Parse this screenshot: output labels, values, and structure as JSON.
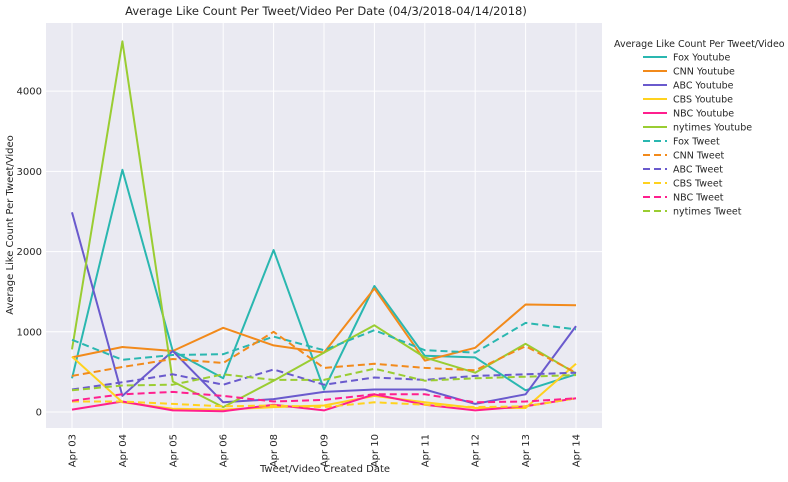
{
  "chart_data": {
    "type": "line",
    "title": "Average Like Count Per Tweet/Video Per Date (04/3/2018-04/14/2018)",
    "xlabel": "Tweet/Video Created Date",
    "ylabel": "Average Like Count Per Tweet/Video",
    "categories": [
      "Apr 03",
      "Apr 04",
      "Apr 05",
      "Apr 06",
      "Apr 08",
      "Apr 09",
      "Apr 10",
      "Apr 11",
      "Apr 12",
      "Apr 13",
      "Apr 14"
    ],
    "y_ticks": [
      0,
      1000,
      2000,
      3000,
      4000
    ],
    "ylim": [
      -200,
      4850
    ],
    "grid": true,
    "legend_title": "Average Like Count Per Tweet/Video",
    "legend_placement": "outside-right",
    "series": [
      {
        "name": "Fox Youtube",
        "color": "#2ab7b0",
        "dash": false,
        "values": [
          420,
          3020,
          760,
          420,
          2020,
          280,
          1570,
          700,
          680,
          270,
          470
        ]
      },
      {
        "name": "CNN Youtube",
        "color": "#f28a1b",
        "dash": false,
        "values": [
          680,
          810,
          760,
          1050,
          830,
          740,
          1540,
          640,
          800,
          1340,
          1330
        ]
      },
      {
        "name": "ABC Youtube",
        "color": "#6a5acd",
        "dash": false,
        "values": [
          2490,
          200,
          760,
          120,
          160,
          250,
          280,
          280,
          100,
          220,
          1070
        ]
      },
      {
        "name": "CBS Youtube",
        "color": "#ffd21e",
        "dash": false,
        "values": [
          690,
          120,
          40,
          30,
          60,
          80,
          200,
          120,
          50,
          50,
          600
        ]
      },
      {
        "name": "NBC Youtube",
        "color": "#ff1f8e",
        "dash": false,
        "values": [
          30,
          130,
          20,
          10,
          90,
          20,
          220,
          90,
          20,
          70,
          170
        ]
      },
      {
        "name": "nytimes Youtube",
        "color": "#9acd32",
        "dash": false,
        "values": [
          780,
          4620,
          380,
          60,
          390,
          740,
          1080,
          680,
          490,
          850,
          480
        ]
      },
      {
        "name": "Fox Tweet",
        "color": "#2ab7b0",
        "dash": true,
        "values": [
          900,
          650,
          710,
          720,
          940,
          770,
          1020,
          770,
          740,
          1110,
          1030
        ]
      },
      {
        "name": "CNN Tweet",
        "color": "#f28a1b",
        "dash": true,
        "values": [
          450,
          560,
          660,
          610,
          1000,
          550,
          600,
          550,
          520,
          820,
          490
        ]
      },
      {
        "name": "ABC Tweet",
        "color": "#6a5acd",
        "dash": true,
        "values": [
          280,
          370,
          470,
          340,
          530,
          340,
          430,
          400,
          450,
          470,
          490
        ]
      },
      {
        "name": "CBS Tweet",
        "color": "#ffd21e",
        "dash": true,
        "values": [
          130,
          130,
          100,
          70,
          80,
          60,
          120,
          90,
          60,
          70,
          170
        ]
      },
      {
        "name": "NBC Tweet",
        "color": "#ff1f8e",
        "dash": true,
        "values": [
          140,
          220,
          250,
          200,
          130,
          150,
          220,
          220,
          120,
          130,
          170
        ]
      },
      {
        "name": "nytimes Tweet",
        "color": "#9acd32",
        "dash": true,
        "values": [
          270,
          330,
          340,
          470,
          400,
          400,
          540,
          390,
          420,
          440,
          460
        ]
      }
    ]
  }
}
